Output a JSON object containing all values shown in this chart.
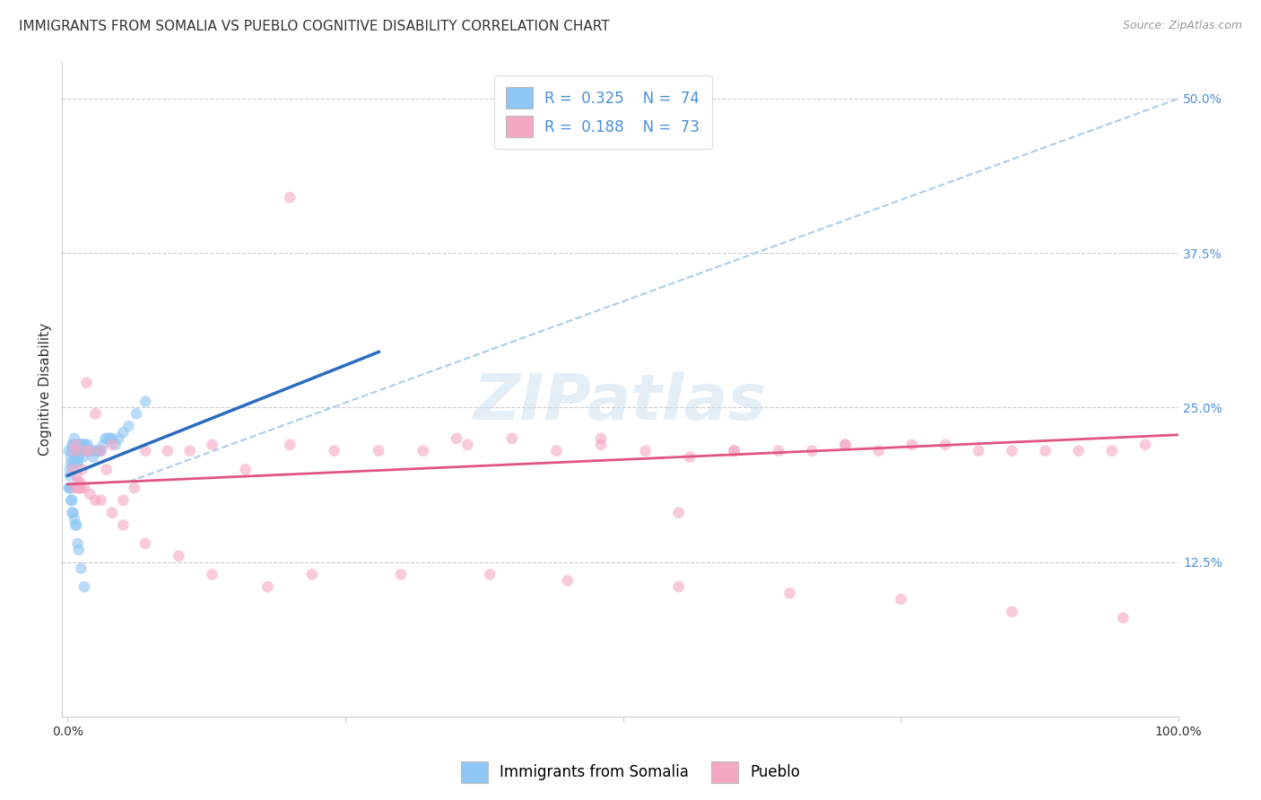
{
  "title": "IMMIGRANTS FROM SOMALIA VS PUEBLO COGNITIVE DISABILITY CORRELATION CHART",
  "source": "Source: ZipAtlas.com",
  "ylabel": "Cognitive Disability",
  "xlim": [
    -0.005,
    1.0
  ],
  "ylim": [
    0.0,
    0.53
  ],
  "yticks_right": [
    0.125,
    0.25,
    0.375,
    0.5
  ],
  "ytick_labels_right": [
    "12.5%",
    "25.0%",
    "37.5%",
    "50.0%"
  ],
  "somalia_color": "#8ec6f5",
  "pueblo_color": "#f5a8c5",
  "somalia_line_color": "#2b6cbf",
  "pueblo_line_color": "#e05580",
  "dashed_line_color": "#aacce8",
  "watermark": "ZIPatlas",
  "somalia_x": [
    0.001,
    0.002,
    0.002,
    0.003,
    0.003,
    0.004,
    0.004,
    0.005,
    0.005,
    0.005,
    0.006,
    0.006,
    0.006,
    0.007,
    0.007,
    0.007,
    0.008,
    0.008,
    0.008,
    0.009,
    0.009,
    0.009,
    0.01,
    0.01,
    0.01,
    0.011,
    0.011,
    0.012,
    0.012,
    0.013,
    0.013,
    0.014,
    0.014,
    0.015,
    0.015,
    0.016,
    0.016,
    0.017,
    0.018,
    0.018,
    0.019,
    0.02,
    0.021,
    0.022,
    0.023,
    0.025,
    0.027,
    0.028,
    0.03,
    0.032,
    0.034,
    0.036,
    0.038,
    0.04,
    0.043,
    0.046,
    0.05,
    0.055,
    0.062,
    0.07,
    0.001,
    0.002,
    0.003,
    0.003,
    0.004,
    0.004,
    0.005,
    0.006,
    0.007,
    0.008,
    0.009,
    0.01,
    0.012,
    0.015
  ],
  "somalia_y": [
    0.215,
    0.2,
    0.195,
    0.21,
    0.205,
    0.22,
    0.215,
    0.205,
    0.215,
    0.22,
    0.21,
    0.215,
    0.225,
    0.205,
    0.21,
    0.22,
    0.205,
    0.215,
    0.22,
    0.21,
    0.215,
    0.205,
    0.215,
    0.22,
    0.21,
    0.22,
    0.215,
    0.215,
    0.22,
    0.215,
    0.22,
    0.21,
    0.215,
    0.215,
    0.22,
    0.215,
    0.22,
    0.215,
    0.215,
    0.22,
    0.215,
    0.215,
    0.215,
    0.215,
    0.21,
    0.215,
    0.215,
    0.215,
    0.215,
    0.22,
    0.225,
    0.225,
    0.225,
    0.225,
    0.22,
    0.225,
    0.23,
    0.235,
    0.245,
    0.255,
    0.185,
    0.185,
    0.185,
    0.175,
    0.175,
    0.165,
    0.165,
    0.16,
    0.155,
    0.155,
    0.14,
    0.135,
    0.12,
    0.105
  ],
  "pueblo_x": [
    0.005,
    0.006,
    0.007,
    0.008,
    0.009,
    0.01,
    0.011,
    0.012,
    0.013,
    0.015,
    0.017,
    0.02,
    0.025,
    0.03,
    0.035,
    0.04,
    0.05,
    0.06,
    0.07,
    0.09,
    0.11,
    0.13,
    0.16,
    0.2,
    0.24,
    0.28,
    0.32,
    0.36,
    0.4,
    0.44,
    0.48,
    0.52,
    0.56,
    0.6,
    0.64,
    0.67,
    0.7,
    0.73,
    0.76,
    0.79,
    0.82,
    0.85,
    0.88,
    0.91,
    0.94,
    0.97,
    0.007,
    0.01,
    0.015,
    0.02,
    0.025,
    0.03,
    0.04,
    0.05,
    0.07,
    0.1,
    0.13,
    0.18,
    0.22,
    0.3,
    0.38,
    0.45,
    0.55,
    0.65,
    0.75,
    0.85,
    0.95,
    0.35,
    0.6,
    0.7,
    0.55,
    0.48,
    0.2
  ],
  "pueblo_y": [
    0.2,
    0.215,
    0.22,
    0.195,
    0.19,
    0.185,
    0.19,
    0.185,
    0.2,
    0.215,
    0.27,
    0.215,
    0.245,
    0.215,
    0.2,
    0.22,
    0.175,
    0.185,
    0.215,
    0.215,
    0.215,
    0.22,
    0.2,
    0.22,
    0.215,
    0.215,
    0.215,
    0.22,
    0.225,
    0.215,
    0.22,
    0.215,
    0.21,
    0.215,
    0.215,
    0.215,
    0.22,
    0.215,
    0.22,
    0.22,
    0.215,
    0.215,
    0.215,
    0.215,
    0.215,
    0.22,
    0.185,
    0.185,
    0.185,
    0.18,
    0.175,
    0.175,
    0.165,
    0.155,
    0.14,
    0.13,
    0.115,
    0.105,
    0.115,
    0.115,
    0.115,
    0.11,
    0.105,
    0.1,
    0.095,
    0.085,
    0.08,
    0.225,
    0.215,
    0.22,
    0.165,
    0.225,
    0.42
  ],
  "grid_yticks": [
    0.125,
    0.25,
    0.375,
    0.5
  ],
  "somalia_trendline_x": [
    0.0,
    0.28
  ],
  "somalia_trendline_y": [
    0.195,
    0.295
  ],
  "pueblo_trendline_x": [
    0.0,
    1.0
  ],
  "pueblo_trendline_y": [
    0.188,
    0.228
  ],
  "dashed_line_x": [
    0.055,
    1.0
  ],
  "dashed_line_y": [
    0.19,
    0.5
  ],
  "title_fontsize": 11,
  "source_fontsize": 9,
  "axis_label_fontsize": 11,
  "tick_fontsize": 10,
  "legend_fontsize": 12,
  "watermark_fontsize": 52,
  "marker_size": 85,
  "marker_alpha": 0.6,
  "background_color": "#ffffff"
}
